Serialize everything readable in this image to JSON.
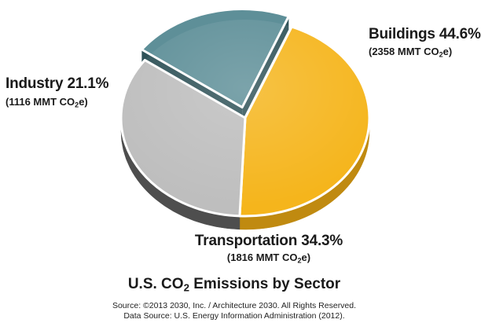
{
  "chart_data": {
    "type": "pie",
    "title_prefix": "U.S. CO",
    "title_sub": "2",
    "title_suffix": " Emissions by Sector",
    "slices": [
      {
        "name": "Buildings",
        "percent_label": "44.6%",
        "value": 44.6,
        "detail_prefix": "(2358 MMT CO",
        "detail_sub": "2",
        "detail_suffix": "e)",
        "color": "#F5B51C",
        "side_color": "#C08A10",
        "exploded": false
      },
      {
        "name": "Transportation",
        "percent_label": "34.3%",
        "value": 34.3,
        "detail_prefix": "(1816 MMT CO",
        "detail_sub": "2",
        "detail_suffix": "e)",
        "color": "#BEBEBE",
        "side_color": "#4E4E4E",
        "exploded": false
      },
      {
        "name": "Industry",
        "percent_label": "21.1%",
        "value": 21.1,
        "detail_prefix": "(1116 MMT CO",
        "detail_sub": "2",
        "detail_suffix": "e)",
        "color": "#5E8F98",
        "side_color": "#2F5258",
        "exploded": true
      }
    ]
  },
  "source_line": "Source: ©2013 2030, Inc. / Architecture 2030. All Rights Reserved.",
  "data_source_line": "Data Source: U.S. Energy Information Administration (2012)."
}
